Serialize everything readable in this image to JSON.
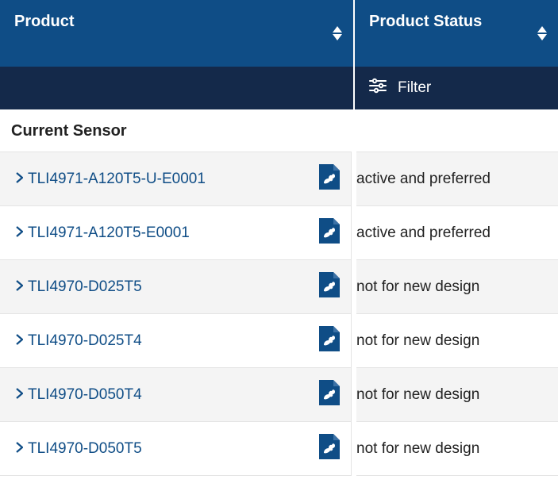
{
  "colors": {
    "header_bg": "#0f4d86",
    "filter_bg": "#14294a",
    "link": "#0f4d86",
    "row_alt": "#f4f4f4",
    "border": "#e4e4e4",
    "text": "#222222"
  },
  "columns": {
    "product": {
      "label": "Product"
    },
    "status": {
      "label": "Product Status"
    }
  },
  "filter": {
    "label": "Filter"
  },
  "category": {
    "label": "Current Sensor"
  },
  "rows": [
    {
      "product": "TLI4971-A120T5-U-E0001",
      "status": "active and preferred"
    },
    {
      "product": "TLI4971-A120T5-E0001",
      "status": "active and preferred"
    },
    {
      "product": "TLI4970-D025T5",
      "status": "not for new design"
    },
    {
      "product": "TLI4970-D025T4",
      "status": "not for new design"
    },
    {
      "product": "TLI4970-D050T4",
      "status": "not for new design"
    },
    {
      "product": "TLI4970-D050T5",
      "status": "not for new design"
    }
  ]
}
